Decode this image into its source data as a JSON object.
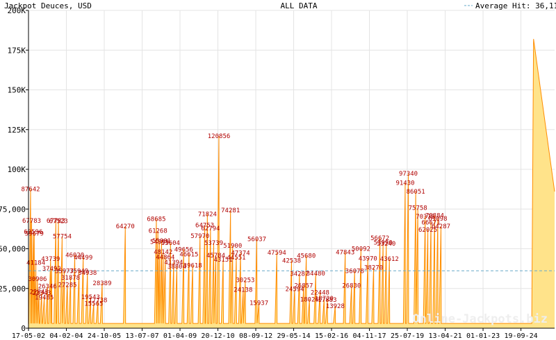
{
  "header": {
    "title": "Jackpot Deuces, USD",
    "center": "ALL DATA",
    "average_label": "Average Hit: 36,113"
  },
  "watermark": "Online-Jackpots.biz",
  "colors": {
    "line": "#ff8c00",
    "fill": "#ffe38a",
    "average": "#66a9c9",
    "label": "#b00000",
    "grid": "#e4e4e4",
    "axis": "#000000"
  },
  "chart_data": {
    "type": "area",
    "ylim": [
      0,
      200000
    ],
    "y_ticks": [
      0,
      25000,
      50000,
      75000,
      100000,
      125000,
      150000,
      175000,
      200000
    ],
    "y_tick_labels": [
      "0",
      "25,000",
      "50,000",
      "75,000",
      "100K",
      "125K",
      "150K",
      "175K",
      "200K"
    ],
    "x_tick_labels": [
      "17-05-02",
      "04-02-04",
      "24-10-05",
      "13-07-07",
      "01-04-09",
      "20-12-10",
      "08-09-12",
      "29-05-14",
      "15-02-16",
      "04-11-17",
      "25-07-19",
      "13-04-21",
      "01-01-23",
      "19-09-24"
    ],
    "x_range": [
      0,
      100
    ],
    "x_ticks": [
      0,
      7.2,
      14.4,
      21.6,
      28.8,
      36.0,
      43.2,
      50.4,
      57.6,
      64.8,
      72.0,
      79.2,
      86.4,
      93.6
    ],
    "average": 36113,
    "hits": [
      {
        "x": 0.4,
        "value": 87642,
        "label": "87642"
      },
      {
        "x": 0.6,
        "value": 67783,
        "label": "67783"
      },
      {
        "x": 0.9,
        "value": 60596,
        "label": "60596"
      },
      {
        "x": 1.1,
        "value": 59679,
        "label": "59679"
      },
      {
        "x": 1.4,
        "value": 41184,
        "label": "41184"
      },
      {
        "x": 1.7,
        "value": 30906,
        "label": "30906"
      },
      {
        "x": 2.0,
        "value": 22843,
        "label": "22843"
      },
      {
        "x": 2.5,
        "value": 22343,
        "label": "22343"
      },
      {
        "x": 3.0,
        "value": 19485,
        "label": "19485"
      },
      {
        "x": 3.6,
        "value": 26346,
        "label": "26346"
      },
      {
        "x": 4.2,
        "value": 43739,
        "label": "43739"
      },
      {
        "x": 4.4,
        "value": 37492,
        "label": "37492"
      },
      {
        "x": 5.2,
        "value": 67783,
        "label": "67783"
      },
      {
        "x": 5.7,
        "value": 67523,
        "label": "67523"
      },
      {
        "x": 6.4,
        "value": 57754,
        "label": "57754"
      },
      {
        "x": 6.8,
        "value": 35977,
        "label": "35977"
      },
      {
        "x": 7.4,
        "value": 27285,
        "label": "27285"
      },
      {
        "x": 8.0,
        "value": 31878,
        "label": "31878"
      },
      {
        "x": 8.8,
        "value": 46020,
        "label": "46020"
      },
      {
        "x": 9.6,
        "value": 35949,
        "label": "35949"
      },
      {
        "x": 10.4,
        "value": 44499,
        "label": "44499"
      },
      {
        "x": 11.2,
        "value": 34938,
        "label": "34938"
      },
      {
        "x": 11.8,
        "value": 19543,
        "label": "19543"
      },
      {
        "x": 12.4,
        "value": 15565,
        "label": "15565"
      },
      {
        "x": 13.2,
        "value": 17738,
        "label": "17738"
      },
      {
        "x": 14.0,
        "value": 28389,
        "label": "28389"
      },
      {
        "x": 18.4,
        "value": 64270,
        "label": "64270"
      },
      {
        "x": 24.3,
        "value": 68685,
        "label": "68685"
      },
      {
        "x": 24.6,
        "value": 61268,
        "label": "61268"
      },
      {
        "x": 24.9,
        "value": 54399,
        "label": "54399"
      },
      {
        "x": 25.3,
        "value": 55001,
        "label": "55001"
      },
      {
        "x": 25.6,
        "value": 48142,
        "label": "48142"
      },
      {
        "x": 26.0,
        "value": 44864,
        "label": "44864"
      },
      {
        "x": 27.0,
        "value": 53604,
        "label": "53604"
      },
      {
        "x": 27.6,
        "value": 41394,
        "label": "41394"
      },
      {
        "x": 28.2,
        "value": 38804,
        "label": "38804"
      },
      {
        "x": 29.5,
        "value": 49656,
        "label": "49656"
      },
      {
        "x": 30.5,
        "value": 46615,
        "label": "46615"
      },
      {
        "x": 31.2,
        "value": 39618,
        "label": "39618"
      },
      {
        "x": 32.6,
        "value": 57970,
        "label": "57970"
      },
      {
        "x": 33.5,
        "value": 64753,
        "label": "64753"
      },
      {
        "x": 34.0,
        "value": 71824,
        "label": "71824"
      },
      {
        "x": 34.6,
        "value": 62794,
        "label": "62794"
      },
      {
        "x": 35.2,
        "value": 53739,
        "label": "53739"
      },
      {
        "x": 35.6,
        "value": 45784,
        "label": "45784"
      },
      {
        "x": 36.2,
        "value": 120856,
        "label": "120856"
      },
      {
        "x": 37.0,
        "value": 43151,
        "label": "43151"
      },
      {
        "x": 38.4,
        "value": 74281,
        "label": "74281"
      },
      {
        "x": 38.8,
        "value": 51900,
        "label": "51900"
      },
      {
        "x": 39.5,
        "value": 44551,
        "label": "44551"
      },
      {
        "x": 40.3,
        "value": 47374,
        "label": "47374"
      },
      {
        "x": 40.8,
        "value": 24138,
        "label": "24138"
      },
      {
        "x": 41.2,
        "value": 30253,
        "label": "30253"
      },
      {
        "x": 43.4,
        "value": 56037,
        "label": "56037"
      },
      {
        "x": 43.8,
        "value": 15937,
        "label": "15937"
      },
      {
        "x": 47.2,
        "value": 47594,
        "label": "47594"
      },
      {
        "x": 50.0,
        "value": 42538,
        "label": "42538"
      },
      {
        "x": 50.6,
        "value": 24594,
        "label": "24594"
      },
      {
        "x": 51.5,
        "value": 34287,
        "label": "34287"
      },
      {
        "x": 52.3,
        "value": 26857,
        "label": "26857"
      },
      {
        "x": 52.8,
        "value": 45680,
        "label": "45680"
      },
      {
        "x": 53.4,
        "value": 18026,
        "label": "18026"
      },
      {
        "x": 54.6,
        "value": 34480,
        "label": "34480"
      },
      {
        "x": 55.4,
        "value": 22448,
        "label": "22448"
      },
      {
        "x": 56.2,
        "value": 18720,
        "label": "18720"
      },
      {
        "x": 56.8,
        "value": 17883,
        "label": "17883"
      },
      {
        "x": 58.3,
        "value": 13928,
        "label": "13928"
      },
      {
        "x": 60.2,
        "value": 47843,
        "label": "47843"
      },
      {
        "x": 61.4,
        "value": 26830,
        "label": "26830"
      },
      {
        "x": 62.0,
        "value": 36078,
        "label": "36078"
      },
      {
        "x": 63.2,
        "value": 50092,
        "label": "50092"
      },
      {
        "x": 64.5,
        "value": 43970,
        "label": "43970"
      },
      {
        "x": 65.6,
        "value": 38270,
        "label": "38270"
      },
      {
        "x": 66.8,
        "value": 56672,
        "label": "56672"
      },
      {
        "x": 67.4,
        "value": 53990,
        "label": "53990"
      },
      {
        "x": 68.0,
        "value": 53240,
        "label": "53240"
      },
      {
        "x": 68.6,
        "value": 43612,
        "label": "43612"
      },
      {
        "x": 71.6,
        "value": 91430,
        "label": "91430"
      },
      {
        "x": 72.2,
        "value": 97340,
        "label": "97340"
      },
      {
        "x": 73.6,
        "value": 86051,
        "label": "86051"
      },
      {
        "x": 74.0,
        "value": 75758,
        "label": "75758"
      },
      {
        "x": 75.4,
        "value": 70378,
        "label": "70378"
      },
      {
        "x": 75.9,
        "value": 62025,
        "label": "62025"
      },
      {
        "x": 76.5,
        "value": 66671,
        "label": "66671"
      },
      {
        "x": 77.2,
        "value": 70884,
        "label": "70884"
      },
      {
        "x": 77.8,
        "value": 69098,
        "label": "69098"
      },
      {
        "x": 78.4,
        "value": 64287,
        "label": "64287"
      },
      {
        "x": 96.0,
        "value": 182000,
        "label": ""
      }
    ]
  }
}
